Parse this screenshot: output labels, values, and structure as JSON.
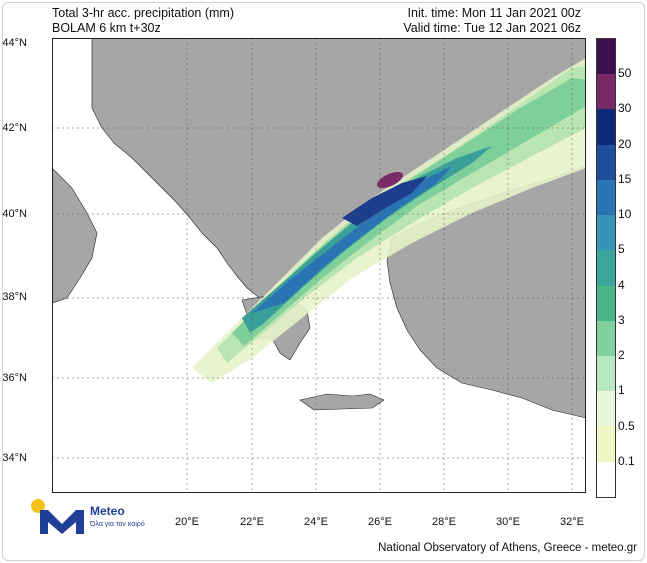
{
  "header": {
    "title_line1": "Total 3-hr acc. precipitation (mm)",
    "title_line2": "BOLAM 6 km t+30z",
    "init_time": "Init. time: Mon 11 Jan 2021 00z",
    "valid_time": "Valid time: Tue 12 Jan 2021 06z"
  },
  "axes": {
    "lat_labels": [
      "44°N",
      "42°N",
      "40°N",
      "38°N",
      "36°N",
      "34°N"
    ],
    "lon_labels": [
      "20°E",
      "22°E",
      "24°E",
      "26°E",
      "28°E",
      "30°E",
      "32°E"
    ]
  },
  "colorbar": {
    "labels": [
      "50",
      "30",
      "20",
      "15",
      "10",
      "5",
      "4",
      "3",
      "2",
      "1",
      "0.5",
      "0.1"
    ],
    "colors": [
      "#3c0f4d",
      "#7a2a66",
      "#102a7a",
      "#1e4f9c",
      "#2a74b4",
      "#3694b8",
      "#3aa69a",
      "#4ab58d",
      "#7fd09a",
      "#b7e7bd",
      "#e6f6d6",
      "#eef6c6",
      "#ffffff"
    ]
  },
  "map_colors": {
    "sea": "#ffffff",
    "land": "#a6a6a6",
    "precip_light": "#e7f2c8",
    "precip_2": "#b9e5b3",
    "precip_3": "#7fcf9a",
    "precip_5": "#3a9e99",
    "precip_10": "#2a74b4",
    "precip_20": "#1c3e8d",
    "precip_30": "#7a2a66",
    "precip_50": "#a33a6a"
  },
  "logo": {
    "name": "Meteo",
    "tagline": "Όλα για τον καιρό"
  },
  "footer": "National Observatory of Athens, Greece - meteo.gr"
}
